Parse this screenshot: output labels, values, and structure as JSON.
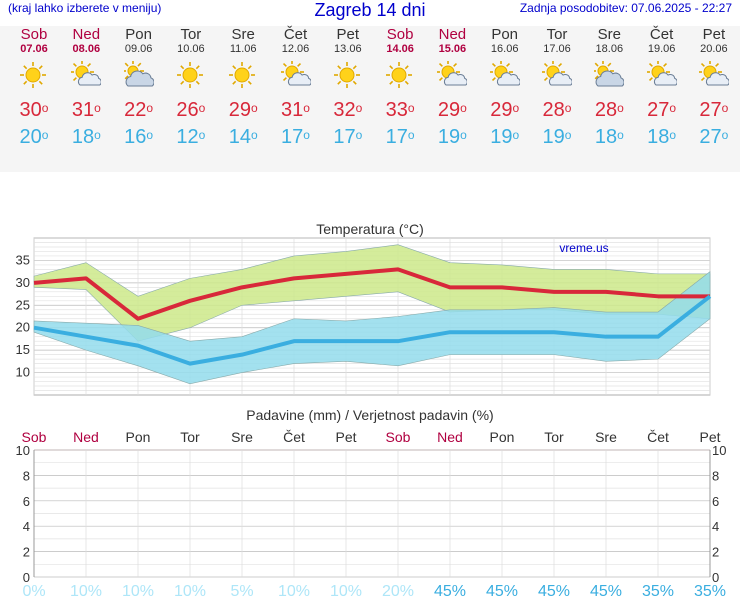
{
  "header": {
    "menu_hint": "(kraj lahko izberete v meniju)",
    "title": "Zagreb 14 dni",
    "updated": "Zadnja posodobitev: 07.06.2025 - 22:27"
  },
  "days": [
    {
      "name": "Sob",
      "date": "07.06",
      "weekend": true,
      "icon": "sunny-icon",
      "max": "30",
      "min": "20"
    },
    {
      "name": "Ned",
      "date": "08.06",
      "weekend": true,
      "icon": "partly-cloudy-icon",
      "max": "31",
      "min": "18"
    },
    {
      "name": "Pon",
      "date": "09.06",
      "weekend": false,
      "icon": "mostly-cloudy-icon",
      "max": "22",
      "min": "16"
    },
    {
      "name": "Tor",
      "date": "10.06",
      "weekend": false,
      "icon": "sunny-icon",
      "max": "26",
      "min": "12"
    },
    {
      "name": "Sre",
      "date": "11.06",
      "weekend": false,
      "icon": "sunny-icon",
      "max": "29",
      "min": "14"
    },
    {
      "name": "Čet",
      "date": "12.06",
      "weekend": false,
      "icon": "partly-cloudy-icon",
      "max": "31",
      "min": "17"
    },
    {
      "name": "Pet",
      "date": "13.06",
      "weekend": false,
      "icon": "sunny-icon",
      "max": "32",
      "min": "17"
    },
    {
      "name": "Sob",
      "date": "14.06",
      "weekend": true,
      "icon": "sunny-icon",
      "max": "33",
      "min": "17"
    },
    {
      "name": "Ned",
      "date": "15.06",
      "weekend": true,
      "icon": "partly-cloudy-icon",
      "max": "29",
      "min": "19"
    },
    {
      "name": "Pon",
      "date": "16.06",
      "weekend": false,
      "icon": "partly-cloudy-icon",
      "max": "29",
      "min": "19"
    },
    {
      "name": "Tor",
      "date": "17.06",
      "weekend": false,
      "icon": "partly-cloudy-icon",
      "max": "28",
      "min": "19"
    },
    {
      "name": "Sre",
      "date": "18.06",
      "weekend": false,
      "icon": "mostly-cloudy-icon",
      "max": "28",
      "min": "18"
    },
    {
      "name": "Čet",
      "date": "19.06",
      "weekend": false,
      "icon": "partly-cloudy-icon",
      "max": "27",
      "min": "18"
    },
    {
      "name": "Pet",
      "date": "20.06",
      "weekend": false,
      "icon": "partly-cloudy-icon",
      "max": "27",
      "min": "27"
    }
  ],
  "chart_data": [
    {
      "type": "line",
      "title": "Temperatura (°C)",
      "watermark": "vreme.us",
      "ylim": [
        5,
        40
      ],
      "yticks": [
        10,
        15,
        20,
        25,
        30,
        35
      ],
      "grid": true,
      "series": [
        {
          "color": "#d8283a",
          "values": [
            30,
            31,
            22,
            26,
            29,
            31,
            32,
            33,
            29,
            29,
            28,
            28,
            27,
            27
          ]
        },
        {
          "color": "#3aaee0",
          "values": [
            20,
            18,
            16,
            12,
            14,
            17,
            17,
            17,
            19,
            19,
            19,
            18,
            18,
            27
          ]
        }
      ],
      "bands": [
        {
          "fill": "#cde98a",
          "upper": [
            31.5,
            34.5,
            27,
            31,
            33,
            36,
            37,
            38.5,
            34.5,
            34,
            33,
            33,
            32,
            32
          ],
          "lower": [
            29,
            28.5,
            17,
            20,
            25,
            26,
            27,
            28,
            23.5,
            24,
            24,
            23,
            23,
            22
          ]
        },
        {
          "fill": "#93dcec",
          "upper": [
            21.5,
            21,
            20.5,
            17,
            18,
            22,
            21.5,
            22.5,
            24,
            24,
            24.5,
            23.5,
            23.5,
            32.5
          ],
          "lower": [
            19,
            15,
            11.5,
            7.5,
            10,
            12,
            12.5,
            11.5,
            14,
            14,
            14,
            12.5,
            13,
            22
          ]
        }
      ]
    },
    {
      "type": "bar",
      "title": "Padavine (mm) / Verjetnost padavin (%)",
      "ylim": [
        0,
        10
      ],
      "yticks": [
        0,
        2,
        4,
        6,
        8,
        10
      ],
      "categories": [
        "Sob",
        "Ned",
        "Pon",
        "Tor",
        "Sre",
        "Čet",
        "Pet",
        "Sob",
        "Ned",
        "Pon",
        "Tor",
        "Sre",
        "Čet",
        "Pet"
      ],
      "values": [
        0,
        0,
        0,
        0,
        0,
        0,
        0,
        0,
        0,
        0,
        0,
        0,
        0,
        0
      ],
      "probabilities": [
        "0%",
        "10%",
        "10%",
        "10%",
        "5%",
        "10%",
        "10%",
        "20%",
        "45%",
        "45%",
        "45%",
        "45%",
        "35%",
        "35%"
      ],
      "prob_colors": {
        "low": "#aee6f8",
        "high": "#3aaee0"
      }
    }
  ]
}
